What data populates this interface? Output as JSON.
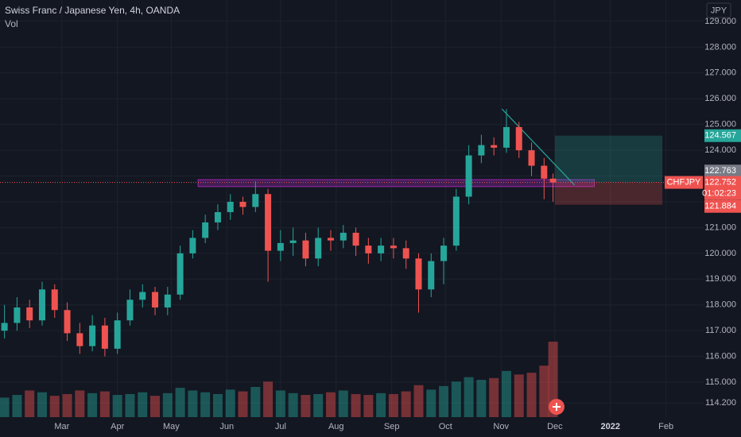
{
  "chart_data": {
    "type": "candlestick",
    "title": "Swiss Franc / Japanese Yen, 4h, OANDA",
    "subtitle": "Vol",
    "y_axis_label": "JPY",
    "symbol": "CHFJPY",
    "countdown": "01:02:23",
    "up_color": "#26a69a",
    "down_color": "#ef5350",
    "grid": true,
    "xlim": [
      24.5,
      417
    ],
    "ylim": [
      113.645,
      129.83
    ],
    "xticks": [
      {
        "value": 59,
        "label": "Mar"
      },
      {
        "value": 90,
        "label": "Apr"
      },
      {
        "value": 120,
        "label": "May"
      },
      {
        "value": 151,
        "label": "Jun"
      },
      {
        "value": 181,
        "label": "Jul"
      },
      {
        "value": 212,
        "label": "Aug"
      },
      {
        "value": 243,
        "label": "Sep"
      },
      {
        "value": 273,
        "label": "Oct"
      },
      {
        "value": 304,
        "label": "Nov"
      },
      {
        "value": 334,
        "label": "Dec"
      },
      {
        "value": 365,
        "label": "2022"
      },
      {
        "value": 396,
        "label": "Feb"
      }
    ],
    "yticks": [
      {
        "value": 114.2,
        "label": "114.200"
      },
      {
        "value": 115,
        "label": "115.000"
      },
      {
        "value": 116,
        "label": "116.000"
      },
      {
        "value": 117,
        "label": "117.000"
      },
      {
        "value": 118,
        "label": "118.000"
      },
      {
        "value": 119,
        "label": "119.000"
      },
      {
        "value": 120,
        "label": "120.000"
      },
      {
        "value": 121,
        "label": "121.000"
      },
      {
        "value": 122,
        "label": "122.000"
      },
      {
        "value": 123,
        "label": "123.000"
      },
      {
        "value": 124,
        "label": "124.000"
      },
      {
        "value": 125,
        "label": "125.000"
      },
      {
        "value": 126,
        "label": "126.000"
      },
      {
        "value": 127,
        "label": "127.000"
      },
      {
        "value": 128,
        "label": "128.000"
      },
      {
        "value": 129,
        "label": "129.000"
      }
    ],
    "x": [
      27,
      34,
      41,
      48,
      55,
      62,
      69,
      76,
      83,
      90,
      97,
      104,
      111,
      118,
      125,
      132,
      139,
      146,
      153,
      160,
      167,
      174,
      181,
      188,
      195,
      202,
      209,
      216,
      223,
      230,
      237,
      244,
      251,
      258,
      265,
      272,
      279,
      286,
      293,
      300,
      307,
      314,
      321,
      328,
      333
    ],
    "open": [
      117.0,
      117.3,
      117.9,
      117.4,
      118.6,
      117.8,
      116.9,
      116.4,
      117.2,
      116.3,
      117.4,
      118.2,
      118.5,
      117.9,
      118.4,
      120.0,
      120.6,
      121.2,
      121.6,
      122.0,
      121.8,
      122.3,
      120.1,
      120.4,
      120.5,
      119.8,
      120.6,
      120.5,
      120.8,
      120.3,
      120.0,
      120.3,
      120.2,
      119.8,
      118.6,
      119.7,
      120.3,
      122.2,
      123.8,
      124.2,
      124.1,
      124.9,
      124.0,
      123.4,
      122.9
    ],
    "high": [
      118.0,
      118.3,
      118.2,
      118.9,
      118.8,
      118.1,
      117.3,
      117.6,
      117.5,
      117.7,
      118.6,
      118.8,
      118.7,
      118.7,
      120.3,
      120.9,
      121.5,
      121.9,
      122.3,
      122.2,
      122.8,
      122.5,
      120.9,
      121.0,
      120.8,
      121.0,
      120.9,
      121.1,
      121.0,
      120.6,
      120.6,
      120.6,
      120.5,
      120.0,
      120.0,
      120.6,
      122.5,
      124.2,
      124.6,
      124.5,
      125.6,
      125.1,
      124.3,
      123.7,
      123.1
    ],
    "low": [
      116.7,
      117.0,
      117.1,
      117.2,
      117.5,
      116.6,
      116.1,
      116.2,
      116.0,
      116.1,
      117.2,
      117.9,
      117.6,
      117.6,
      118.2,
      119.8,
      120.4,
      120.9,
      121.3,
      121.5,
      121.6,
      118.9,
      119.7,
      119.9,
      119.5,
      119.5,
      120.1,
      120.2,
      119.9,
      119.6,
      119.7,
      119.8,
      119.4,
      117.7,
      118.3,
      118.8,
      120.1,
      121.9,
      123.5,
      123.8,
      123.9,
      123.7,
      123.0,
      122.1,
      122.0
    ],
    "close": [
      117.3,
      117.9,
      117.4,
      118.6,
      117.8,
      116.9,
      116.4,
      117.2,
      116.3,
      117.4,
      118.2,
      118.5,
      117.9,
      118.4,
      120.0,
      120.6,
      121.2,
      121.6,
      122.0,
      121.8,
      122.3,
      120.1,
      120.4,
      120.5,
      119.8,
      120.6,
      120.5,
      120.8,
      120.3,
      120.0,
      120.3,
      120.2,
      119.8,
      118.6,
      119.7,
      120.3,
      122.2,
      123.8,
      124.2,
      124.1,
      124.9,
      124.0,
      123.4,
      122.9,
      122.752
    ],
    "volume": [
      22,
      25,
      30,
      28,
      24,
      26,
      30,
      27,
      29,
      25,
      26,
      28,
      24,
      27,
      33,
      30,
      28,
      26,
      31,
      29,
      34,
      40,
      30,
      27,
      25,
      26,
      28,
      30,
      26,
      25,
      27,
      26,
      29,
      36,
      31,
      35,
      40,
      45,
      42,
      44,
      52,
      48,
      50,
      58,
      85
    ],
    "current_price": 122.752,
    "position": {
      "start": 334,
      "end": 394,
      "target": 124.567,
      "entry": 122.763,
      "stop": 121.884,
      "target_color": "#26a69a",
      "stop_color": "#ef5350"
    },
    "zone": {
      "start": 135,
      "end": 356,
      "top": 122.86,
      "bottom": 122.59,
      "color": "#9c27b0"
    },
    "trendline": {
      "x": [
        304.5,
        345
      ],
      "y": [
        125.6,
        122.65
      ],
      "color": "#26a69a"
    }
  }
}
